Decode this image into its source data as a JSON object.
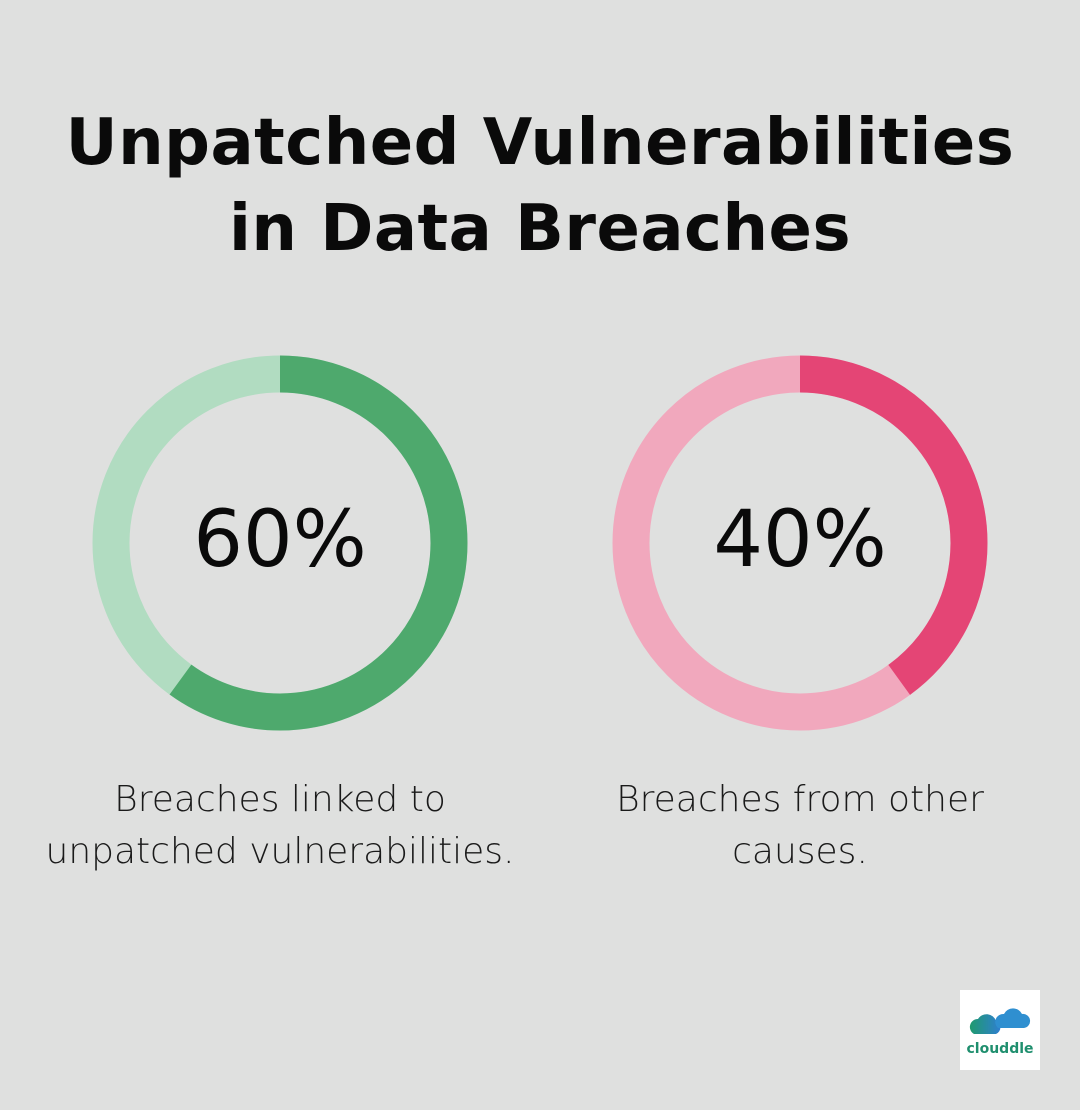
{
  "title_lines": [
    "Unpatched Vulnerabilities",
    "in Data Breaches"
  ],
  "chart_data": [
    {
      "type": "pie",
      "variant": "donut",
      "values": [
        60,
        40
      ],
      "label": "60%",
      "caption": "Breaches linked to unpatched vulnerabilities.",
      "colors": {
        "value": "#4ea96d",
        "rest": "#b1dcc1"
      }
    },
    {
      "type": "pie",
      "variant": "donut",
      "values": [
        40,
        60
      ],
      "label": "40%",
      "caption": "Breaches from other causes.",
      "colors": {
        "value": "#e44575",
        "rest": "#f1a8bd"
      }
    }
  ],
  "caption_lines": [
    [
      "Breaches linked to",
      "unpatched vulnerabilities."
    ],
    [
      "Breaches from other",
      "causes."
    ]
  ],
  "logo": {
    "text": "clouddle"
  }
}
